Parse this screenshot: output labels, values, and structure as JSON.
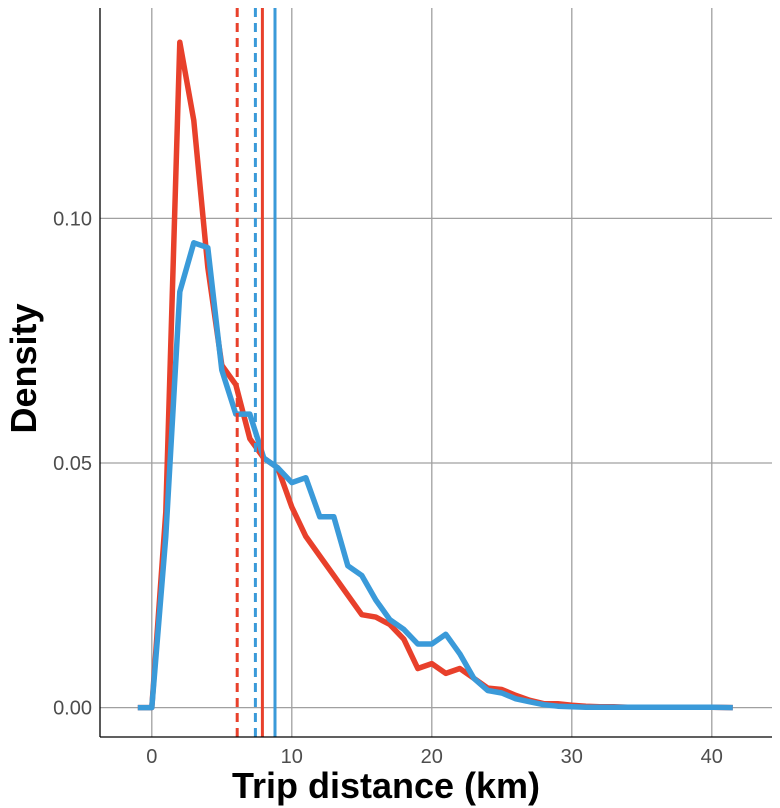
{
  "chart_data": {
    "type": "line",
    "title": "",
    "xlabel": "Trip distance (km)",
    "ylabel": "Density",
    "xlim": [
      -3.7,
      44.3
    ],
    "ylim": [
      -0.006,
      0.143
    ],
    "x_ticks": [
      0,
      10,
      20,
      30,
      40
    ],
    "x_tick_labels": [
      "0",
      "10",
      "20",
      "30",
      "40"
    ],
    "y_ticks": [
      0.0,
      0.05,
      0.1
    ],
    "y_tick_labels": [
      "0.00",
      "0.05",
      "0.10"
    ],
    "grid": true,
    "legend": "none",
    "series": [
      {
        "color": "#e8402b",
        "x": [
          -1,
          0,
          1,
          2,
          3,
          4,
          5,
          6,
          7,
          8,
          9,
          10,
          11,
          12,
          13,
          14,
          15,
          16,
          17,
          18,
          19,
          20,
          21,
          22,
          23,
          24,
          25,
          26,
          27,
          28,
          29,
          30,
          31,
          32,
          33,
          34,
          35,
          36,
          37,
          38,
          39,
          40,
          41.5
        ],
        "values": [
          0.0,
          0.0,
          0.04,
          0.136,
          0.12,
          0.09,
          0.07,
          0.066,
          0.055,
          0.051,
          0.049,
          0.041,
          0.035,
          0.031,
          0.027,
          0.023,
          0.019,
          0.0185,
          0.017,
          0.014,
          0.008,
          0.009,
          0.007,
          0.008,
          0.006,
          0.004,
          0.0037,
          0.0025,
          0.0015,
          0.0008,
          0.0008,
          0.0005,
          0.0003,
          0.0002,
          0.0002,
          0.0001,
          0.0001,
          0.0001,
          0.0001,
          0.0001,
          0.0001,
          0.0001,
          0.0
        ]
      },
      {
        "color": "#3a9ad9",
        "x": [
          -1,
          0,
          1,
          2,
          3,
          4,
          5,
          6,
          7,
          8,
          9,
          10,
          11,
          12,
          13,
          14,
          15,
          16,
          17,
          18,
          19,
          20,
          21,
          22,
          23,
          24,
          25,
          26,
          27,
          28,
          29,
          30,
          31,
          32,
          33,
          34,
          35,
          36,
          37,
          38,
          39,
          40,
          41.5
        ],
        "values": [
          0.0,
          0.0,
          0.035,
          0.085,
          0.095,
          0.094,
          0.069,
          0.06,
          0.06,
          0.051,
          0.049,
          0.046,
          0.047,
          0.039,
          0.039,
          0.029,
          0.027,
          0.022,
          0.018,
          0.016,
          0.013,
          0.013,
          0.015,
          0.011,
          0.006,
          0.0035,
          0.003,
          0.0018,
          0.0012,
          0.0006,
          0.0003,
          0.0002,
          0.0001,
          0.0001,
          0.0001,
          0.0001,
          0.0001,
          0.0001,
          0.0001,
          0.0001,
          0.0001,
          0.0001,
          0.0
        ]
      }
    ],
    "vlines": [
      {
        "x": 6.1,
        "color": "#e8402b",
        "dashed": true
      },
      {
        "x": 7.4,
        "color": "#3a9ad9",
        "dashed": true
      },
      {
        "x": 7.9,
        "color": "#e8402b",
        "dashed": false
      },
      {
        "x": 8.8,
        "color": "#3a9ad9",
        "dashed": false
      }
    ]
  }
}
